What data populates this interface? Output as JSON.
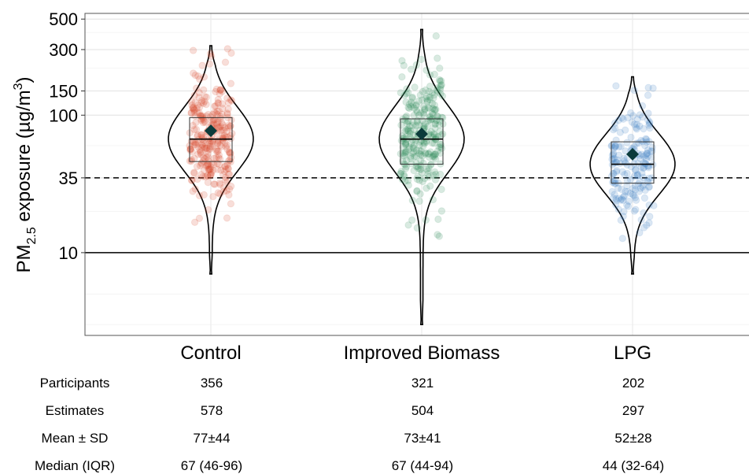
{
  "chart_data": {
    "type": "violin",
    "ylabel": "PM2.5 exposure (µg/m3)",
    "ylabel_parts": {
      "base": "PM",
      "sub": "2.5",
      "mid": " exposure (µg/m",
      "sup": "3",
      "end": ")"
    },
    "y_scale": "log",
    "ylim": [
      2.5,
      550
    ],
    "y_ticks": [
      10,
      35,
      100,
      150,
      300,
      500
    ],
    "y_tick_labels": [
      "10",
      "35",
      "100",
      "150",
      "300",
      "500"
    ],
    "reference_lines": [
      {
        "value": 35,
        "style": "dashed"
      },
      {
        "value": 10,
        "style": "solid"
      }
    ],
    "grid": true,
    "categories": [
      "Control",
      "Improved Biomass",
      "LPG"
    ],
    "colors": [
      "#d9472b",
      "#2e8b57",
      "#3b7fc4"
    ],
    "mean_marker_color": "#0b3b3b",
    "series": [
      {
        "category": "Control",
        "min": 7,
        "q1": 46,
        "median": 67,
        "q3": 96,
        "max": 320,
        "mean": 77
      },
      {
        "category": "Improved Biomass",
        "min": 3,
        "q1": 44,
        "median": 67,
        "q3": 94,
        "max": 420,
        "mean": 73
      },
      {
        "category": "LPG",
        "min": 7,
        "q1": 32,
        "median": 44,
        "q3": 64,
        "max": 190,
        "mean": 52
      }
    ]
  },
  "table": {
    "row_labels": [
      "Participants",
      "Estimates",
      "Mean ± SD",
      "Median (IQR)"
    ],
    "columns": [
      {
        "category": "Control",
        "values": [
          "356",
          "578",
          "77±44",
          "67 (46-96)"
        ]
      },
      {
        "category": "Improved Biomass",
        "values": [
          "321",
          "504",
          "73±41",
          "67 (44-94)"
        ]
      },
      {
        "category": "LPG",
        "values": [
          "202",
          "297",
          "52±28",
          "44 (32-64)"
        ]
      }
    ]
  }
}
